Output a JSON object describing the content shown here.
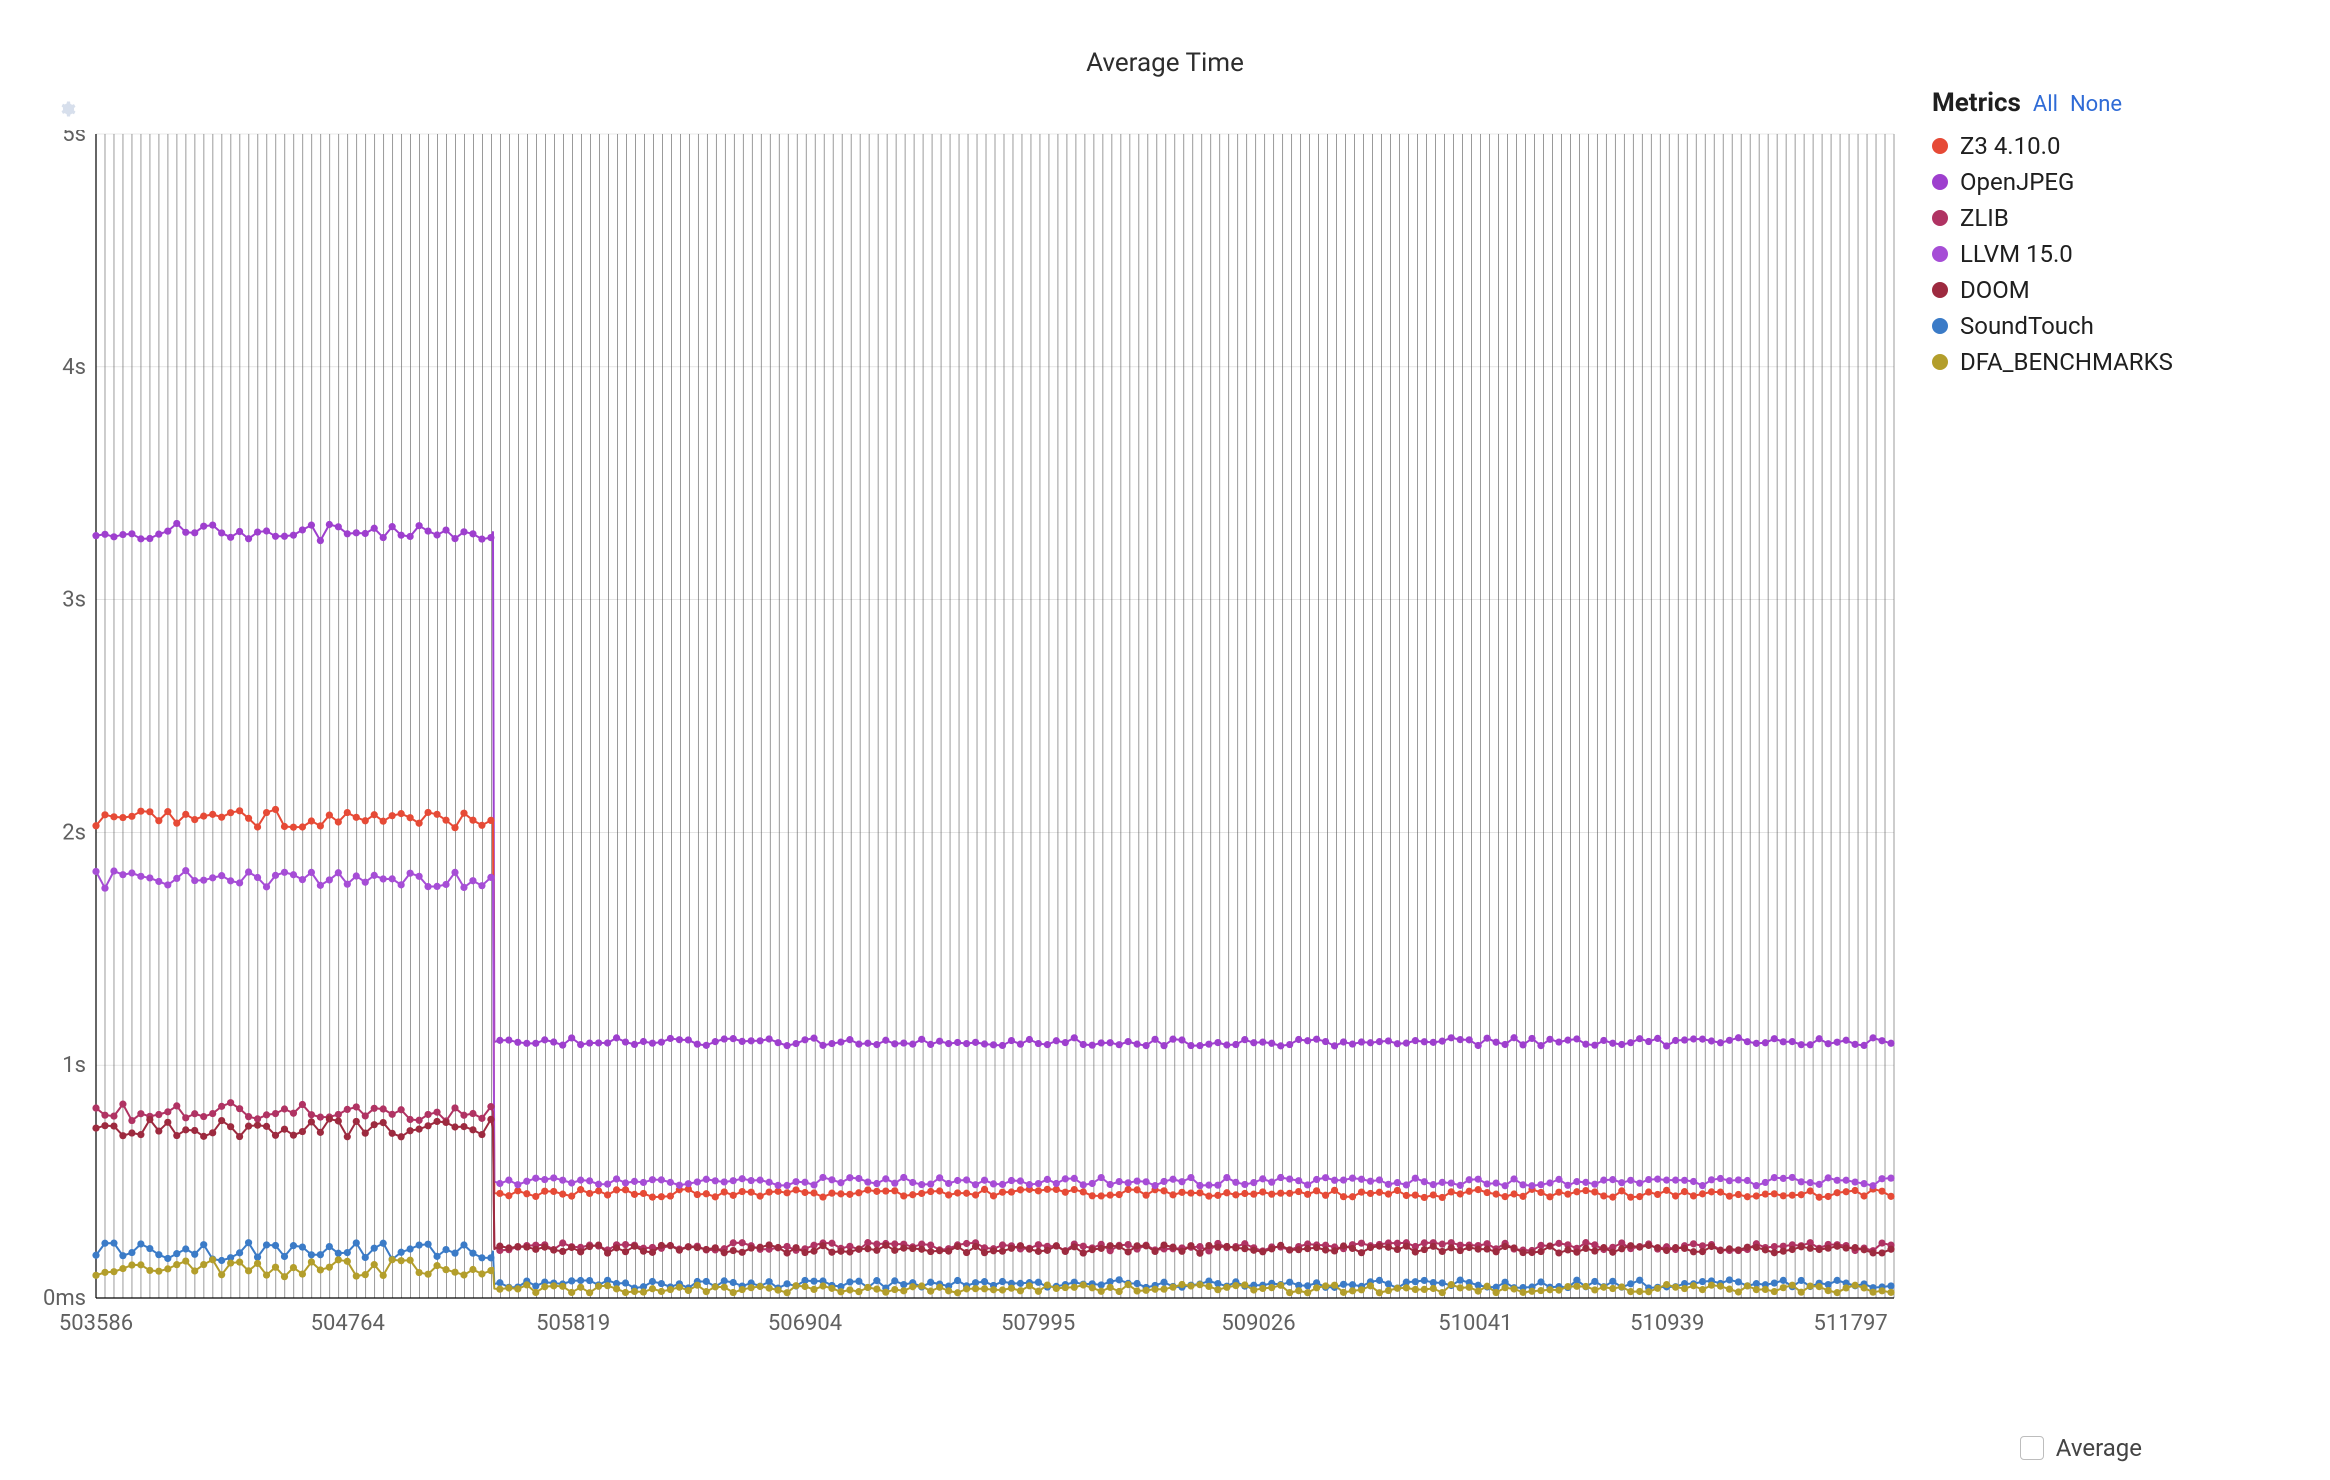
{
  "chart": {
    "type": "line",
    "title": "Average Time",
    "title_fontsize": 26,
    "title_color": "#2d2d2d",
    "background_color": "#ffffff",
    "plot_bg_color": "#ffffff",
    "gridline_color": "#575757",
    "gridline_width": 0.7,
    "xgrid_count": 200,
    "xlim": [
      503586,
      512000
    ],
    "ylim": [
      0,
      5
    ],
    "ytick_values": [
      0,
      1,
      2,
      3,
      4,
      5
    ],
    "ytick_labels": [
      "0ms",
      "1s",
      "2s",
      "3s",
      "4s",
      "5s"
    ],
    "ytick_fontsize": 22,
    "ytick_color": "#606060",
    "xtick_values": [
      503586,
      504764,
      505819,
      506904,
      507995,
      509026,
      510041,
      510939,
      511797
    ],
    "xtick_labels": [
      "503586",
      "504764",
      "505819",
      "506904",
      "507995",
      "509026",
      "510041",
      "510939",
      "511797"
    ],
    "xtick_fontsize": 22,
    "xtick_color": "#606060",
    "axis_color": "#000000",
    "point_interval_x": 42,
    "break_x": 505450,
    "marker_radius": 3.6,
    "line_width": 2,
    "jitter": {
      "before": 0.04,
      "after": 0.018
    },
    "series": [
      {
        "name": "OpenJPEG",
        "color": "#9e3fce",
        "before": 3.29,
        "after": 1.1
      },
      {
        "name": "Z3 4.10.0",
        "color": "#e64a36",
        "before": 2.06,
        "after": 0.45
      },
      {
        "name": "LLVM 15.0",
        "color": "#a64dd6",
        "before": 1.8,
        "after": 0.5
      },
      {
        "name": "ZLIB",
        "color": "#b03363",
        "before": 0.8,
        "after": 0.22
      },
      {
        "name": "DOOM",
        "color": "#9d2a3f",
        "before": 0.73,
        "after": 0.21
      },
      {
        "name": "SoundTouch",
        "color": "#3b7bc7",
        "before": 0.2,
        "after": 0.06
      },
      {
        "name": "DFA_BENCHMARKS",
        "color": "#b39e2b",
        "before": 0.13,
        "after": 0.04
      }
    ]
  },
  "legend": {
    "title": "Metrics",
    "all_label": "All",
    "none_label": "None",
    "link_color": "#2f6bd6",
    "title_fontsize": 26,
    "item_fontsize": 24,
    "items": [
      {
        "label": "Z3 4.10.0",
        "color": "#e64a36"
      },
      {
        "label": "OpenJPEG",
        "color": "#9e3fce"
      },
      {
        "label": "ZLIB",
        "color": "#b03363"
      },
      {
        "label": "LLVM 15.0",
        "color": "#a64dd6"
      },
      {
        "label": "DOOM",
        "color": "#9d2a3f"
      },
      {
        "label": "SoundTouch",
        "color": "#3b7bc7"
      },
      {
        "label": "DFA_BENCHMARKS",
        "color": "#b39e2b"
      }
    ]
  },
  "footer": {
    "average_label": "Average",
    "average_checked": false
  },
  "gear_icon_color": "#b8c6dd"
}
